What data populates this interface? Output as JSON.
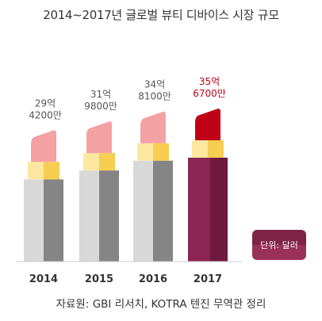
{
  "title": "2014~2017년 글로벌 뷰티 디바이스 시장 규모",
  "unit_label": "단위: 달러",
  "source": "자료원: GBI 리서치, KOTRA 텐진 무역관 정리",
  "colors": {
    "highlight_tip": "#c00016",
    "highlight_body": "#8b2552",
    "normal_tip": "#f4a1a4",
    "normal_body_light": "#d8d8d8",
    "normal_body_dark": "#858585",
    "collar_light": "#fde7a0",
    "collar_dark": "#f7ce52",
    "highlight_label": "#c00016"
  },
  "chart_data": {
    "type": "bar",
    "title": "2014~2017년 글로벌 뷰티 디바이스 시장 규모",
    "categories": [
      "2014",
      "2015",
      "2016",
      "2017"
    ],
    "values": [
      2942000000,
      3198000000,
      3481000000,
      3567000000
    ],
    "value_labels": [
      [
        "29억",
        "4200만"
      ],
      [
        "31억",
        "9800만"
      ],
      [
        "34억",
        "8100만"
      ],
      [
        "35억",
        "6700만"
      ]
    ],
    "highlight_index": 3,
    "unit": "단위: 달러"
  }
}
